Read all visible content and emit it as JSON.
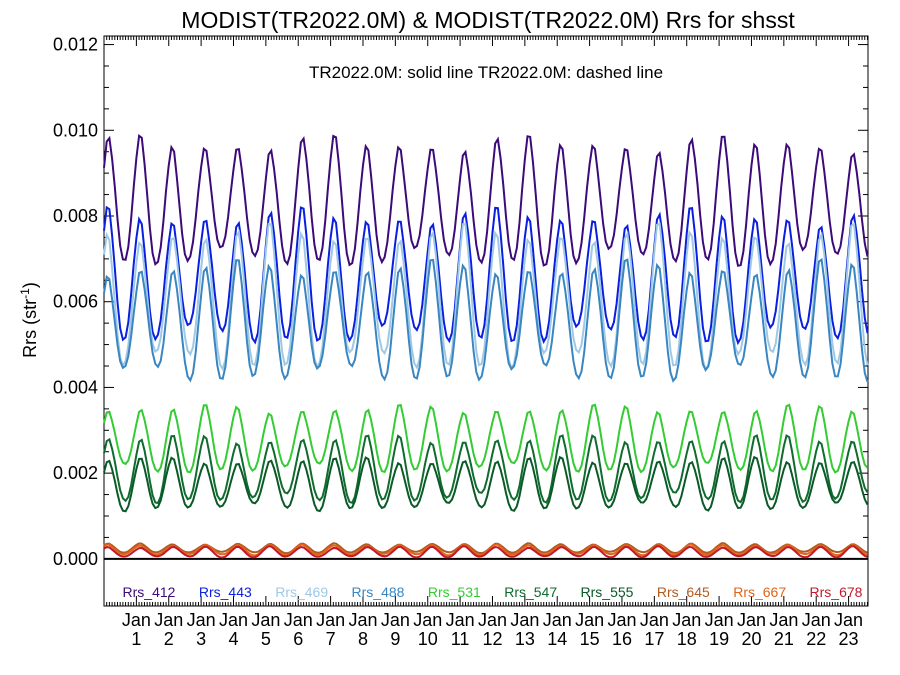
{
  "chart_data": {
    "type": "line",
    "title": "MODIST(TR2022.0M) & MODIST(TR2022.0M)  Rrs for shsst",
    "annotation": "TR2022.0M: solid line   TR2022.0M: dashed line",
    "ylabel": "Rrs (str",
    "ylabel_sup": "-1",
    "ylabel_close": ")",
    "ylim": [
      -0.0011,
      0.0122
    ],
    "yticks": [
      "0.000",
      "0.002",
      "0.004",
      "0.006",
      "0.008",
      "0.010",
      "0.012"
    ],
    "ytick_values": [
      0.0,
      0.002,
      0.004,
      0.006,
      0.008,
      0.01,
      0.012
    ],
    "x_range_years": [
      0,
      23.6
    ],
    "xticks": [
      {
        "month": "Jan",
        "num": "1"
      },
      {
        "month": "Jan",
        "num": "2"
      },
      {
        "month": "Jan",
        "num": "3"
      },
      {
        "month": "Jan",
        "num": "4"
      },
      {
        "month": "Jan",
        "num": "5"
      },
      {
        "month": "Jan",
        "num": "6"
      },
      {
        "month": "Jan",
        "num": "7"
      },
      {
        "month": "Jan",
        "num": "8"
      },
      {
        "month": "Jan",
        "num": "9"
      },
      {
        "month": "Jan",
        "num": "10"
      },
      {
        "month": "Jan",
        "num": "11"
      },
      {
        "month": "Jan",
        "num": "12"
      },
      {
        "month": "Jan",
        "num": "13"
      },
      {
        "month": "Jan",
        "num": "14"
      },
      {
        "month": "Jan",
        "num": "15"
      },
      {
        "month": "Jan",
        "num": "16"
      },
      {
        "month": "Jan",
        "num": "17"
      },
      {
        "month": "Jan",
        "num": "18"
      },
      {
        "month": "Jan",
        "num": "19"
      },
      {
        "month": "Jan",
        "num": "20"
      },
      {
        "month": "Jan",
        "num": "21"
      },
      {
        "month": "Jan",
        "num": "22"
      },
      {
        "month": "Jan",
        "num": "23"
      }
    ],
    "zero_line": 0.0,
    "series": [
      {
        "name": "Rrs_412",
        "color": "#3d0a7a",
        "peak": 0.0097,
        "trough": 0.007
      },
      {
        "name": "Rrs_443",
        "color": "#0a1fe0",
        "peak": 0.008,
        "trough": 0.0052
      },
      {
        "name": "Rrs_469",
        "color": "#9ec9e6",
        "peak": 0.0076,
        "trough": 0.0046
      },
      {
        "name": "Rrs_488",
        "color": "#3a86c2",
        "peak": 0.0068,
        "trough": 0.0043
      },
      {
        "name": "Rrs_531",
        "color": "#33cc33",
        "peak": 0.0035,
        "trough": 0.0021
      },
      {
        "name": "Rrs_547",
        "color": "#0f6b2e",
        "peak": 0.0028,
        "trough": 0.0014
      },
      {
        "name": "Rrs_555",
        "color": "#0a5a28",
        "peak": 0.0023,
        "trough": 0.0012
      },
      {
        "name": "Rrs_645",
        "color": "#b35a1f",
        "peak": 0.00035,
        "trough": 0.00015
      },
      {
        "name": "Rrs_667",
        "color": "#e0641a",
        "peak": 0.00032,
        "trough": 0.0001
      },
      {
        "name": "Rrs_678",
        "color": "#c4192b",
        "peak": 0.00028,
        "trough": 5e-05
      }
    ],
    "legend_placement": "bottom, inside plot"
  }
}
